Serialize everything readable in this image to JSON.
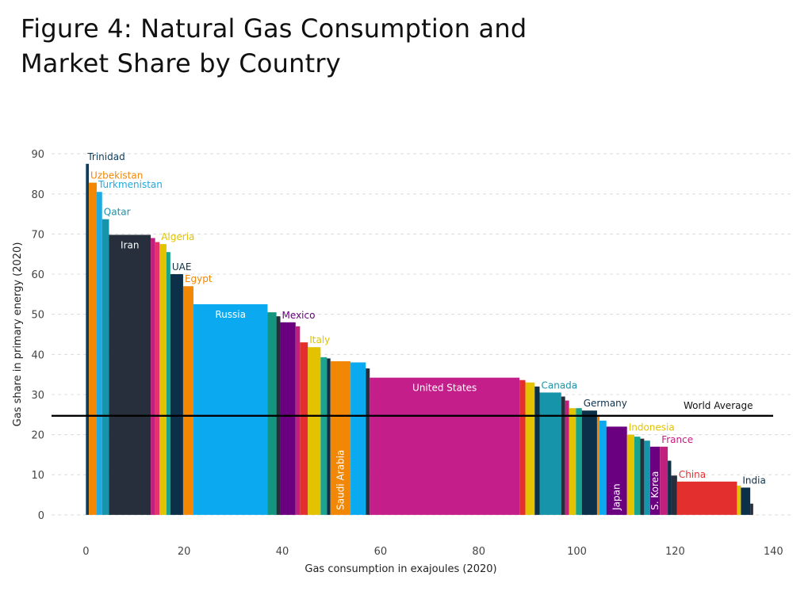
{
  "figure": {
    "title_line1": "Figure 4: Natural Gas Consumption and",
    "title_line2": "Market Share by Country"
  },
  "chart_data": {
    "type": "bar",
    "subtype": "variable-width (marimekko-style): bar width = gas consumption, bar height = gas share",
    "xlabel": "Gas consumption in exajoules (2020)",
    "ylabel": "Gas share in primary energy (2020)",
    "xlim": [
      -7,
      144
    ],
    "ylim": [
      -2,
      92
    ],
    "xticks": [
      0,
      20,
      40,
      60,
      80,
      100,
      120,
      140
    ],
    "yticks": [
      0,
      10,
      20,
      30,
      40,
      50,
      60,
      70,
      80,
      90
    ],
    "grid": "horizontal dashed",
    "world_average": {
      "label": "World Average",
      "value": 24.7
    },
    "bars": [
      {
        "label": "Trinidad",
        "consumption": 0.6,
        "share": 87.5,
        "color": "#0b3c5d",
        "label_pos": "above"
      },
      {
        "label": "Uzbekistan",
        "consumption": 1.6,
        "share": 82.8,
        "color": "#f28705",
        "label_pos": "above"
      },
      {
        "label": "Turkmenistan",
        "consumption": 1.1,
        "share": 80.5,
        "color": "#1faae1",
        "label_pos": "above"
      },
      {
        "label": "Qatar",
        "consumption": 1.4,
        "share": 73.7,
        "color": "#1694a9",
        "label_pos": "above"
      },
      {
        "label": "Iran",
        "consumption": 8.5,
        "share": 69.8,
        "color": "#262f3b",
        "label_pos": "inside-top"
      },
      {
        "label": "",
        "consumption": 0.9,
        "share": 69.0,
        "color": "#c2207e"
      },
      {
        "label": "",
        "consumption": 0.9,
        "share": 68.0,
        "color": "#e5326d"
      },
      {
        "label": "Algeria",
        "consumption": 1.4,
        "share": 67.5,
        "color": "#e3c200",
        "label_pos": "above"
      },
      {
        "label": "",
        "consumption": 0.8,
        "share": 65.5,
        "color": "#1aa38d"
      },
      {
        "label": "UAE",
        "consumption": 2.6,
        "share": 60.0,
        "color": "#0c3049",
        "label_pos": "above"
      },
      {
        "label": "Egypt",
        "consumption": 2.1,
        "share": 57.0,
        "color": "#f28705",
        "label_pos": "above"
      },
      {
        "label": "Russia",
        "consumption": 15.1,
        "share": 52.5,
        "color": "#0baaf0",
        "label_pos": "inside-top"
      },
      {
        "label": "",
        "consumption": 1.8,
        "share": 50.5,
        "color": "#14957f"
      },
      {
        "label": "",
        "consumption": 0.8,
        "share": 49.5,
        "color": "#262f3b"
      },
      {
        "label": "Mexico",
        "consumption": 3.1,
        "share": 48.0,
        "color": "#6a0080",
        "label_pos": "above"
      },
      {
        "label": "",
        "consumption": 0.9,
        "share": 47.0,
        "color": "#c2207e"
      },
      {
        "label": "",
        "consumption": 1.6,
        "share": 43.0,
        "color": "#e3302f"
      },
      {
        "label": "Italy",
        "consumption": 2.6,
        "share": 41.8,
        "color": "#e3c200",
        "label_pos": "above"
      },
      {
        "label": "",
        "consumption": 1.3,
        "share": 39.3,
        "color": "#1aa38d"
      },
      {
        "label": "",
        "consumption": 0.7,
        "share": 39.0,
        "color": "#0c3049"
      },
      {
        "label": "Saudi Arabia",
        "consumption": 4.1,
        "share": 38.3,
        "color": "#f28705",
        "label_pos": "inside-vertical"
      },
      {
        "label": "",
        "consumption": 3.1,
        "share": 38.0,
        "color": "#0baaf0"
      },
      {
        "label": "",
        "consumption": 0.8,
        "share": 36.5,
        "color": "#262f3b"
      },
      {
        "label": "United States",
        "consumption": 30.5,
        "share": 34.2,
        "color": "#c41e8a",
        "label_pos": "inside-top"
      },
      {
        "label": "",
        "consumption": 1.2,
        "share": 33.6,
        "color": "#e3302f"
      },
      {
        "label": "",
        "consumption": 1.9,
        "share": 33.0,
        "color": "#e3c200"
      },
      {
        "label": "",
        "consumption": 1.0,
        "share": 32.0,
        "color": "#0c3049"
      },
      {
        "label": "Canada",
        "consumption": 4.4,
        "share": 30.5,
        "color": "#1694a9",
        "label_pos": "above"
      },
      {
        "label": "",
        "consumption": 0.8,
        "share": 29.5,
        "color": "#262f3b"
      },
      {
        "label": "",
        "consumption": 0.8,
        "share": 28.5,
        "color": "#c2207e"
      },
      {
        "label": "",
        "consumption": 1.4,
        "share": 26.6,
        "color": "#e3c200"
      },
      {
        "label": "",
        "consumption": 1.2,
        "share": 26.6,
        "color": "#1aa38d"
      },
      {
        "label": "Germany",
        "consumption": 3.1,
        "share": 26.0,
        "color": "#0c3049",
        "label_pos": "above"
      },
      {
        "label": "",
        "consumption": 0.5,
        "share": 24.5,
        "color": "#f28705"
      },
      {
        "label": "",
        "consumption": 1.4,
        "share": 23.5,
        "color": "#0baaf0"
      },
      {
        "label": "Japan",
        "consumption": 4.2,
        "share": 22.0,
        "color": "#6a0080",
        "label_pos": "inside-vertical"
      },
      {
        "label": "Indonesia",
        "consumption": 1.5,
        "share": 20.0,
        "color": "#e3c200",
        "label_pos": "above"
      },
      {
        "label": "",
        "consumption": 1.2,
        "share": 19.5,
        "color": "#1aa38d"
      },
      {
        "label": "",
        "consumption": 0.8,
        "share": 19.0,
        "color": "#262f3b"
      },
      {
        "label": "",
        "consumption": 1.2,
        "share": 18.5,
        "color": "#1694a9"
      },
      {
        "label": "S. Korea",
        "consumption": 2.0,
        "share": 17.0,
        "color": "#6a0080",
        "label_pos": "inside-vertical"
      },
      {
        "label": "France",
        "consumption": 1.6,
        "share": 17.0,
        "color": "#c2207e",
        "label_pos": "above"
      },
      {
        "label": "",
        "consumption": 0.7,
        "share": 13.5,
        "color": "#0c3049"
      },
      {
        "label": "",
        "consumption": 1.2,
        "share": 9.8,
        "color": "#262f3b"
      },
      {
        "label": "China",
        "consumption": 12.2,
        "share": 8.3,
        "color": "#e3302f",
        "label_pos": "above"
      },
      {
        "label": "",
        "consumption": 0.8,
        "share": 7.3,
        "color": "#e3c200"
      },
      {
        "label": "India",
        "consumption": 1.9,
        "share": 6.8,
        "color": "#0c3049",
        "label_pos": "above"
      },
      {
        "label": "",
        "consumption": 0.6,
        "share": 2.8,
        "color": "#262f3b"
      }
    ]
  }
}
